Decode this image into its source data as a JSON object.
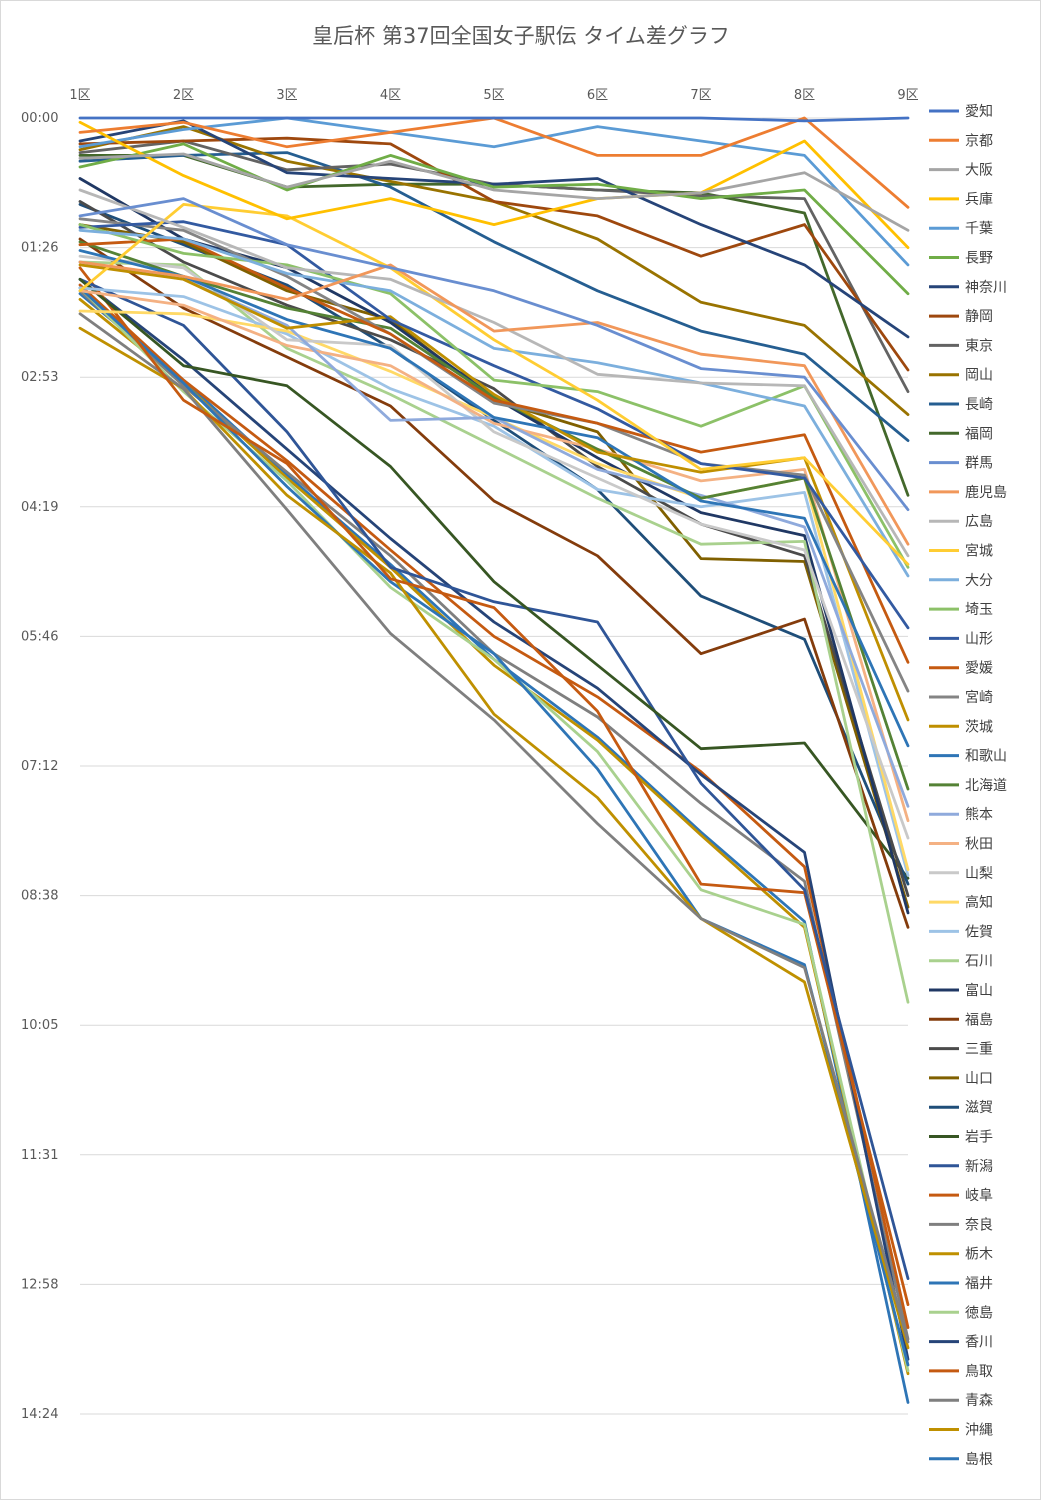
{
  "chart_data": {
    "type": "line",
    "title": "皇后杯 第37回全国女子駅伝 タイム差グラフ",
    "x": [
      "1区",
      "2区",
      "3区",
      "4区",
      "5区",
      "6区",
      "7区",
      "8区",
      "9区"
    ],
    "y_ticks": [
      "00:00",
      "01:26",
      "02:53",
      "04:19",
      "05:46",
      "07:12",
      "08:38",
      "10:05",
      "11:31",
      "12:58",
      "14:24"
    ],
    "y_unit": "seconds behind leader",
    "ylim": [
      0,
      900
    ],
    "y_axis": "reversed",
    "grid": true,
    "legend_position": "right",
    "series": [
      {
        "name": "愛知",
        "color": "#4472C4",
        "values": [
          0,
          0,
          0,
          0,
          0,
          0,
          0,
          2,
          0
        ]
      },
      {
        "name": "京都",
        "color": "#ED7D31",
        "values": [
          10,
          3,
          20,
          10,
          0,
          26,
          26,
          0,
          62
        ]
      },
      {
        "name": "大阪",
        "color": "#A5A5A5",
        "values": [
          28,
          25,
          48,
          30,
          50,
          56,
          52,
          38,
          78
        ]
      },
      {
        "name": "兵庫",
        "color": "#FFC000",
        "values": [
          3,
          40,
          70,
          56,
          74,
          56,
          52,
          16,
          90
        ]
      },
      {
        "name": "千葉",
        "color": "#5B9BD5",
        "values": [
          20,
          8,
          0,
          10,
          20,
          6,
          16,
          26,
          102
        ]
      },
      {
        "name": "長野",
        "color": "#70AD47",
        "values": [
          34,
          18,
          50,
          26,
          48,
          46,
          56,
          50,
          122
        ]
      },
      {
        "name": "神奈川",
        "color": "#264478",
        "values": [
          16,
          2,
          38,
          42,
          46,
          42,
          74,
          102,
          152
        ]
      },
      {
        "name": "静岡",
        "color": "#9E480E",
        "values": [
          18,
          16,
          14,
          18,
          58,
          68,
          96,
          74,
          175
        ]
      },
      {
        "name": "東京",
        "color": "#636363",
        "values": [
          24,
          16,
          36,
          32,
          46,
          50,
          54,
          56,
          190
        ]
      },
      {
        "name": "岡山",
        "color": "#997300",
        "values": [
          22,
          6,
          30,
          44,
          58,
          84,
          128,
          144,
          206
        ]
      },
      {
        "name": "長崎",
        "color": "#255E91",
        "values": [
          30,
          26,
          24,
          48,
          86,
          120,
          148,
          164,
          224
        ]
      },
      {
        "name": "福岡",
        "color": "#43682B",
        "values": [
          26,
          26,
          48,
          46,
          46,
          50,
          52,
          66,
          262
        ]
      },
      {
        "name": "群馬",
        "color": "#698ED0",
        "values": [
          68,
          56,
          88,
          104,
          120,
          144,
          174,
          180,
          272
        ]
      },
      {
        "name": "鹿児島",
        "color": "#F1975A",
        "values": [
          100,
          110,
          126,
          102,
          148,
          142,
          164,
          172,
          296
        ]
      },
      {
        "name": "広島",
        "color": "#B7B7B7",
        "values": [
          50,
          76,
          104,
          112,
          142,
          178,
          184,
          186,
          304
        ]
      },
      {
        "name": "宮城",
        "color": "#FFCD33",
        "values": [
          120,
          60,
          68,
          104,
          154,
          196,
          244,
          236,
          310
        ]
      },
      {
        "name": "大分",
        "color": "#7CAFDD",
        "values": [
          78,
          84,
          108,
          120,
          160,
          170,
          184,
          200,
          318
        ]
      },
      {
        "name": "埼玉",
        "color": "#8CC168",
        "values": [
          74,
          94,
          102,
          122,
          182,
          190,
          214,
          186,
          312
        ]
      },
      {
        "name": "山形",
        "color": "#335AA1",
        "values": [
          76,
          72,
          88,
          140,
          172,
          202,
          240,
          250,
          354
        ]
      },
      {
        "name": "愛媛",
        "color": "#C55A11",
        "values": [
          88,
          84,
          118,
          150,
          196,
          212,
          232,
          220,
          378
        ]
      },
      {
        "name": "宮崎",
        "color": "#848484",
        "values": [
          70,
          78,
          110,
          150,
          198,
          212,
          240,
          248,
          398
        ]
      },
      {
        "name": "茨城",
        "color": "#BF8F00",
        "values": [
          102,
          112,
          146,
          138,
          192,
          232,
          246,
          236,
          418
        ]
      },
      {
        "name": "和歌山",
        "color": "#2E75B6",
        "values": [
          92,
          110,
          140,
          160,
          208,
          222,
          266,
          278,
          436
        ]
      },
      {
        "name": "北海道",
        "color": "#548235",
        "values": [
          86,
          110,
          132,
          146,
          194,
          230,
          264,
          250,
          466
        ]
      },
      {
        "name": "熊本",
        "color": "#8FAADC",
        "values": [
          100,
          112,
          144,
          210,
          208,
          244,
          262,
          284,
          478
        ]
      },
      {
        "name": "秋田",
        "color": "#F4B183",
        "values": [
          120,
          130,
          158,
          172,
          212,
          230,
          252,
          244,
          488
        ]
      },
      {
        "name": "山梨",
        "color": "#C9C9C9",
        "values": [
          96,
          104,
          154,
          158,
          218,
          250,
          282,
          300,
          500
        ]
      },
      {
        "name": "高知",
        "color": "#FFD966",
        "values": [
          134,
          136,
          148,
          176,
          208,
          240,
          264,
          250,
          522
        ]
      },
      {
        "name": "佐賀",
        "color": "#9DC3E6",
        "values": [
          118,
          124,
          150,
          188,
          214,
          258,
          270,
          260,
          526
        ]
      },
      {
        "name": "石川",
        "color": "#A9D18E",
        "values": [
          100,
          102,
          160,
          192,
          228,
          264,
          296,
          294,
          614
        ]
      },
      {
        "name": "富山",
        "color": "#203864",
        "values": [
          42,
          84,
          104,
          142,
          194,
          236,
          274,
          290,
          552
        ]
      },
      {
        "name": "福島",
        "color": "#843C0C",
        "values": [
          84,
          132,
          166,
          200,
          266,
          304,
          372,
          348,
          562
        ]
      },
      {
        "name": "三重",
        "color": "#4B4B4B",
        "values": [
          58,
          100,
          130,
          154,
          188,
          242,
          282,
          304,
          540
        ]
      },
      {
        "name": "山口",
        "color": "#806000",
        "values": [
          74,
          86,
          120,
          140,
          196,
          218,
          306,
          308,
          548
        ]
      },
      {
        "name": "滋賀",
        "color": "#1F4E79",
        "values": [
          60,
          88,
          116,
          160,
          210,
          258,
          332,
          362,
          532
        ]
      },
      {
        "name": "岩手",
        "color": "#375623",
        "values": [
          112,
          172,
          186,
          242,
          322,
          380,
          438,
          434,
          528
        ]
      },
      {
        "name": "新潟",
        "color": "#2F5597",
        "values": [
          112,
          144,
          218,
          312,
          336,
          350,
          462,
          536,
          806
        ]
      },
      {
        "name": "岐阜",
        "color": "#C55A11",
        "values": [
          104,
          196,
          240,
          320,
          340,
          412,
          532,
          538,
          824
        ]
      },
      {
        "name": "奈良",
        "color": "#7F7F7F",
        "values": [
          136,
          188,
          272,
          358,
          418,
          490,
          556,
          590,
          850
        ]
      },
      {
        "name": "栃木",
        "color": "#BF9000",
        "values": [
          146,
          188,
          262,
          316,
          414,
          472,
          556,
          600,
          854
        ]
      },
      {
        "name": "福井",
        "color": "#2E75B6",
        "values": [
          118,
          184,
          256,
          322,
          372,
          452,
          556,
          588,
          866
        ]
      },
      {
        "name": "徳島",
        "color": "#A9D18E",
        "values": [
          118,
          190,
          252,
          326,
          376,
          440,
          536,
          560,
          870
        ]
      },
      {
        "name": "香川",
        "color": "#264478",
        "values": [
          112,
          168,
          230,
          292,
          350,
          396,
          456,
          510,
          862
        ]
      },
      {
        "name": "鳥取",
        "color": "#C55A11",
        "values": [
          116,
          182,
          238,
          300,
          360,
          402,
          454,
          520,
          840
        ]
      },
      {
        "name": "青森",
        "color": "#7F7F7F",
        "values": [
          120,
          186,
          246,
          304,
          372,
          416,
          476,
          530,
          848
        ]
      },
      {
        "name": "沖縄",
        "color": "#BF9000",
        "values": [
          126,
          184,
          250,
          312,
          380,
          432,
          498,
          562,
          872
        ]
      },
      {
        "name": "島根",
        "color": "#2E75B6",
        "values": [
          122,
          182,
          248,
          310,
          376,
          430,
          496,
          558,
          892
        ]
      }
    ]
  }
}
